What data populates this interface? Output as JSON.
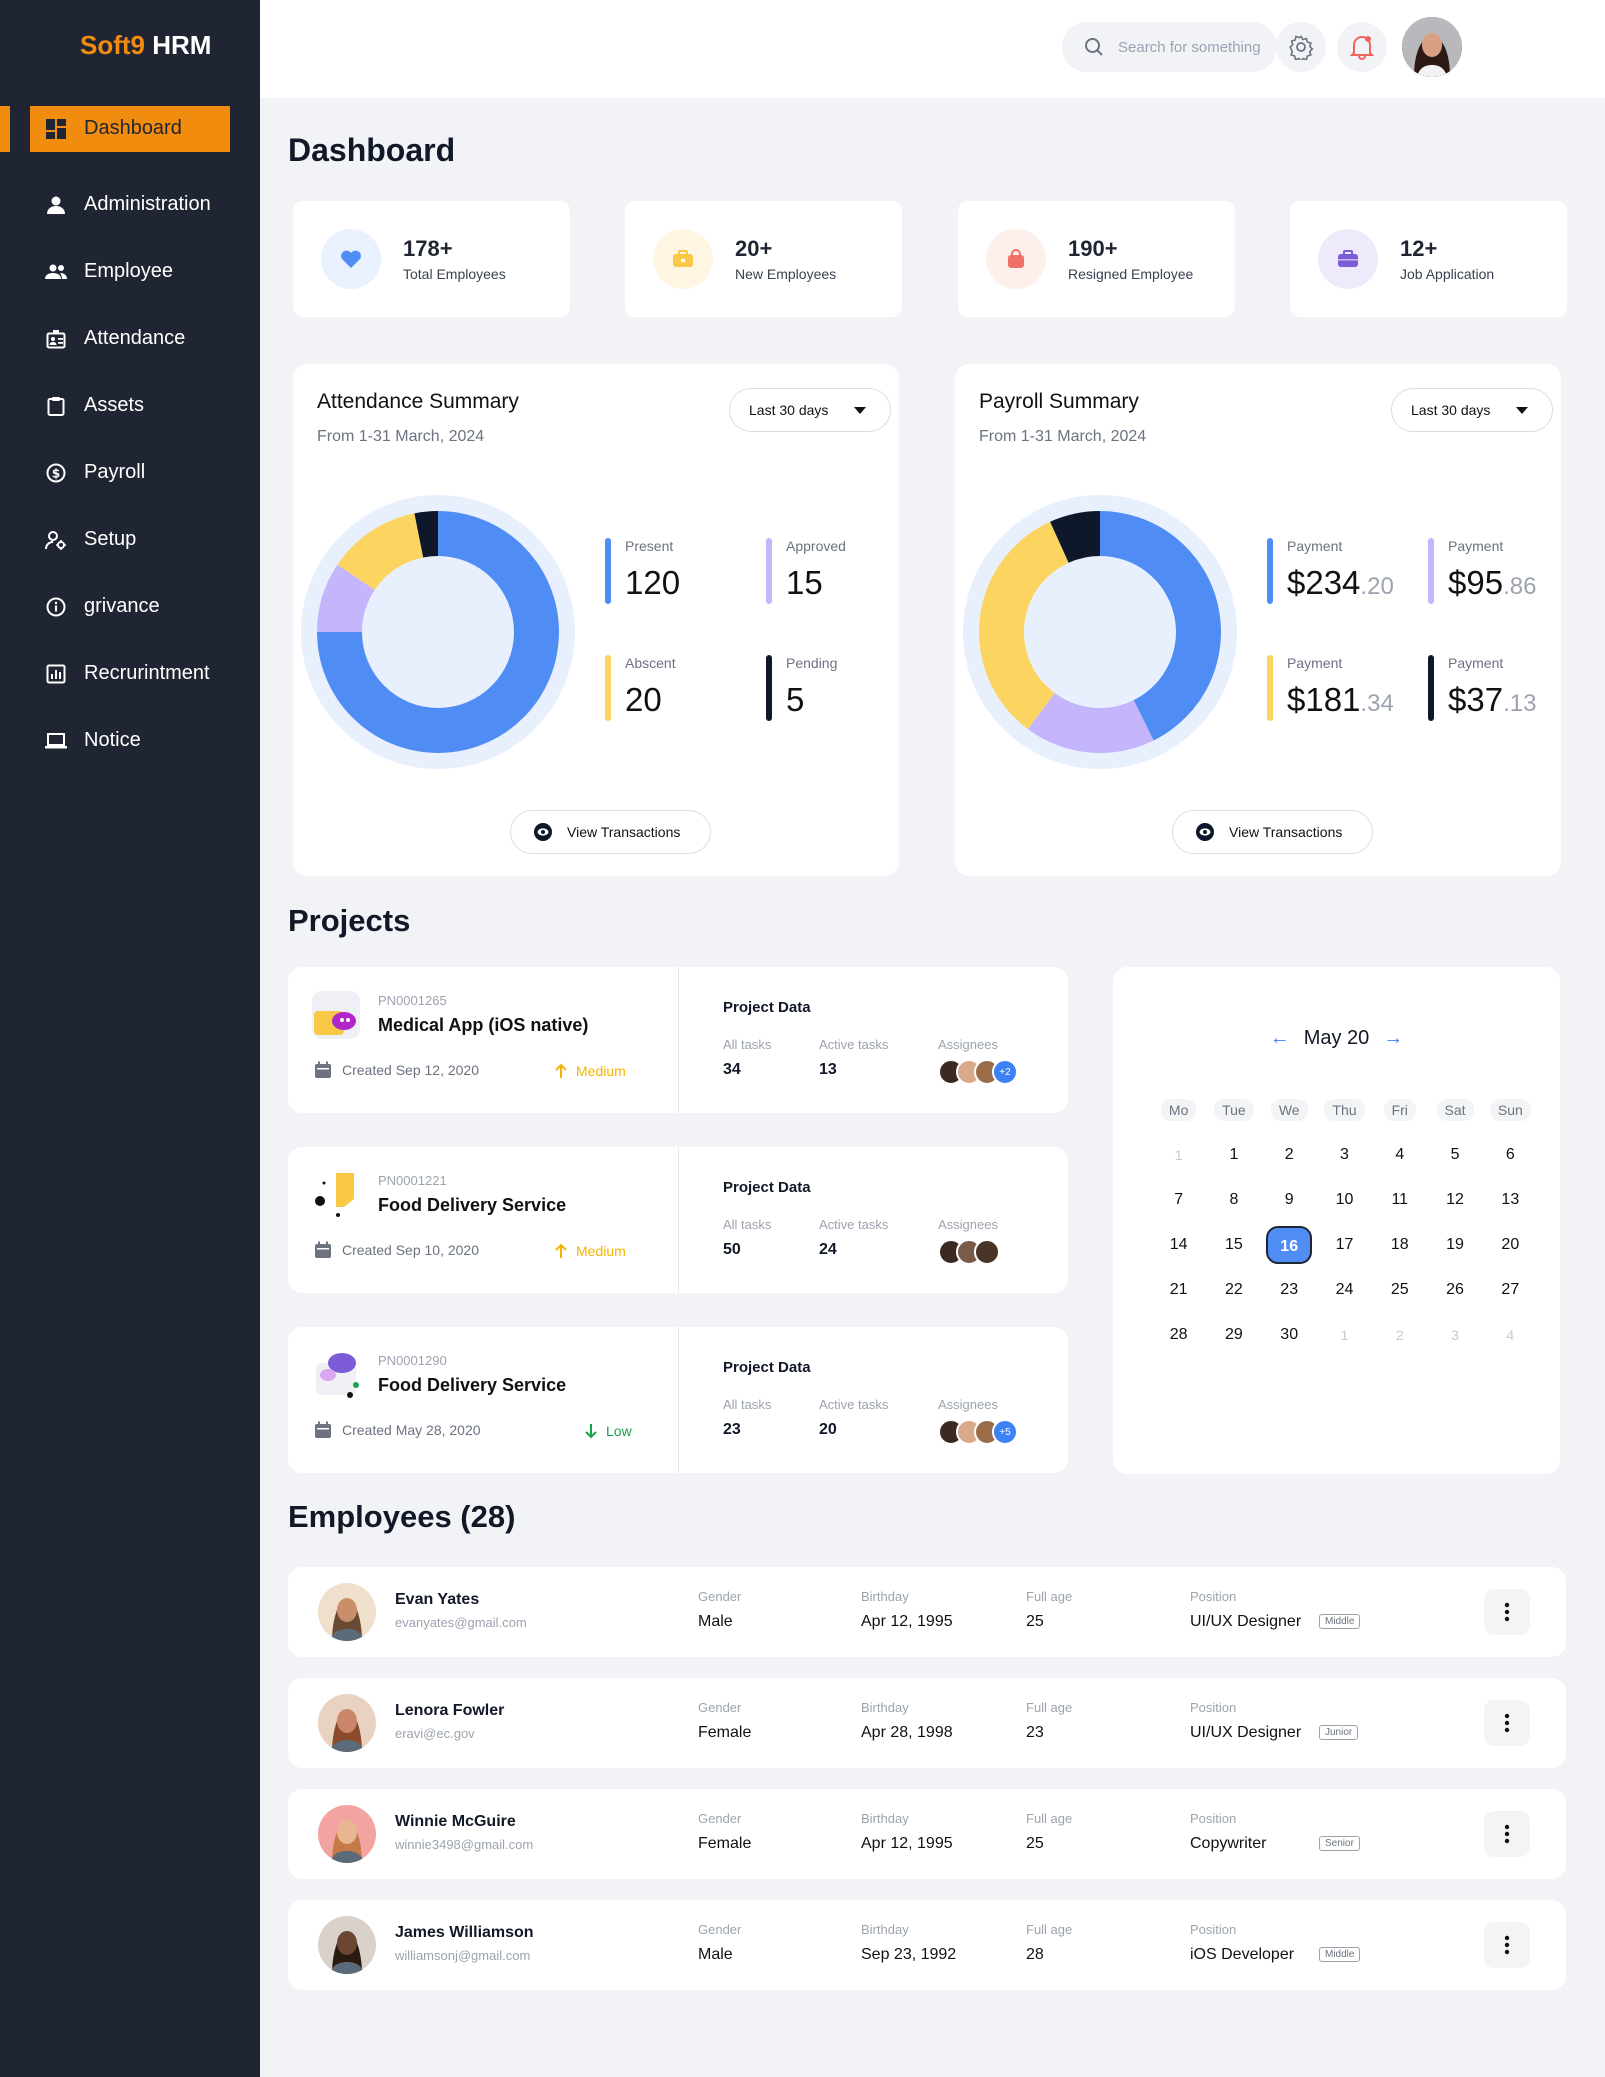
{
  "app": {
    "logo_accent": "Soft9",
    "logo_rest": "HRM"
  },
  "nav": [
    {
      "label": "Dashboard",
      "icon": "dashboard-icon"
    },
    {
      "label": "Administration",
      "icon": "user-icon"
    },
    {
      "label": "Employee",
      "icon": "users-icon"
    },
    {
      "label": "Attendance",
      "icon": "id-card-icon"
    },
    {
      "label": "Assets",
      "icon": "clipboard-icon"
    },
    {
      "label": "Payroll",
      "icon": "dollar-icon"
    },
    {
      "label": "Setup",
      "icon": "user-settings-icon"
    },
    {
      "label": "grivance",
      "icon": "info-icon"
    },
    {
      "label": "Recrurintment",
      "icon": "chart-icon"
    },
    {
      "label": "Notice",
      "icon": "laptop-icon"
    }
  ],
  "topbar": {
    "search_placeholder": "Search for something"
  },
  "page_title": "Dashboard",
  "stats": [
    {
      "value": "178+",
      "label": "Total Employees",
      "icon": "heart-icon",
      "color": "#4f8df5"
    },
    {
      "value": "20+",
      "label": "New Employees",
      "icon": "briefcase-icon",
      "color": "#f9c846"
    },
    {
      "value": "190+",
      "label": "Resigned Employee",
      "icon": "bag-icon",
      "color": "#f07167"
    },
    {
      "value": "12+",
      "label": "Job Application",
      "icon": "case-icon",
      "color": "#7c5cd6"
    }
  ],
  "attendance": {
    "title": "Attendance Summary",
    "subtitle": "From 1-31 March, 2024",
    "range": "Last 30 days",
    "view_label": "View Transactions",
    "items": [
      {
        "label": "Present",
        "value": "120",
        "color": "#4f8df5"
      },
      {
        "label": "Approved",
        "value": "15",
        "color": "#c4b5fd"
      },
      {
        "label": "Abscent",
        "value": "20",
        "color": "#fcd561"
      },
      {
        "label": "Pending",
        "value": "5",
        "color": "#0f172a"
      }
    ]
  },
  "payroll": {
    "title": "Payroll Summary",
    "subtitle": "From 1-31 March, 2024",
    "range": "Last 30 days",
    "view_label": "View Transactions",
    "items": [
      {
        "label": "Payment",
        "main": "$234",
        "cents": ".20",
        "color": "#4f8df5"
      },
      {
        "label": "Payment",
        "main": "$95",
        "cents": ".86",
        "color": "#c4b5fd"
      },
      {
        "label": "Payment",
        "main": "$181",
        "cents": ".34",
        "color": "#fcd561"
      },
      {
        "label": "Payment",
        "main": "$37",
        "cents": ".13",
        "color": "#0f172a"
      }
    ]
  },
  "chart_data": [
    {
      "type": "pie",
      "categories": [
        "Present",
        "Approved",
        "Abscent",
        "Pending"
      ],
      "values": [
        120,
        15,
        20,
        5
      ]
    },
    {
      "type": "pie",
      "categories": [
        "Payment",
        "Payment",
        "Payment",
        "Payment"
      ],
      "values": [
        234.2,
        95.86,
        181.34,
        37.13
      ]
    }
  ],
  "projects_title": "Projects",
  "projects": [
    {
      "code": "PN0001265",
      "name": "Medical App (iOS native)",
      "created": "Created Sep 12, 2020",
      "priority": "Medium",
      "priority_color": "#f5b400",
      "data_title": "Project Data",
      "all_label": "All tasks",
      "all": "34",
      "active_label": "Active tasks",
      "active": "13",
      "assignees_label": "Assignees",
      "extra": "+2"
    },
    {
      "code": "PN0001221",
      "name": "Food Delivery Service",
      "created": "Created Sep 10, 2020",
      "priority": "Medium",
      "priority_color": "#f5b400",
      "data_title": "Project Data",
      "all_label": "All tasks",
      "all": "50",
      "active_label": "Active tasks",
      "active": "24",
      "assignees_label": "Assignees",
      "extra": ""
    },
    {
      "code": "PN0001290",
      "name": "Food Delivery Service",
      "created": "Created May 28, 2020",
      "priority": "Low",
      "priority_color": "#16a34a",
      "data_title": "Project Data",
      "all_label": "All tasks",
      "all": "23",
      "active_label": "Active tasks",
      "active": "20",
      "assignees_label": "Assignees",
      "extra": "+5"
    }
  ],
  "calendar": {
    "month": "May 20",
    "weekdays": [
      "Mo",
      "Tue",
      "We",
      "Thu",
      "Fri",
      "Sat",
      "Sun"
    ],
    "weeks": [
      [
        "1",
        "1",
        "2",
        "3",
        "4",
        "5",
        "6"
      ],
      [
        "7",
        "8",
        "9",
        "10",
        "11",
        "12",
        "13"
      ],
      [
        "14",
        "15",
        "16",
        "17",
        "18",
        "19",
        "20"
      ],
      [
        "21",
        "22",
        "23",
        "24",
        "25",
        "26",
        "27"
      ],
      [
        "28",
        "29",
        "30",
        "1",
        "2",
        "3",
        "4"
      ]
    ],
    "selected": "16"
  },
  "employees_title": "Employees (28)",
  "employee_labels": {
    "gender": "Gender",
    "birthday": "Birthday",
    "age": "Full age",
    "position": "Position"
  },
  "employees": [
    {
      "name": "Evan Yates",
      "email": "evanyates@gmail.com",
      "gender": "Male",
      "birthday": "Apr 12, 1995",
      "age": "25",
      "position": "UI/UX Designer",
      "level": "Middle"
    },
    {
      "name": "Lenora Fowler",
      "email": "eravi@ec.gov",
      "gender": "Female",
      "birthday": "Apr 28, 1998",
      "age": "23",
      "position": "UI/UX Designer",
      "level": "Junior"
    },
    {
      "name": "Winnie McGuire",
      "email": "winnie3498@gmail.com",
      "gender": "Female",
      "birthday": "Apr 12, 1995",
      "age": "25",
      "position": "Copywriter",
      "level": "Senior"
    },
    {
      "name": "James Williamson",
      "email": "williamsonj@gmail.com",
      "gender": "Male",
      "birthday": "Sep 23, 1992",
      "age": "28",
      "position": "iOS Developer",
      "level": "Middle"
    }
  ]
}
